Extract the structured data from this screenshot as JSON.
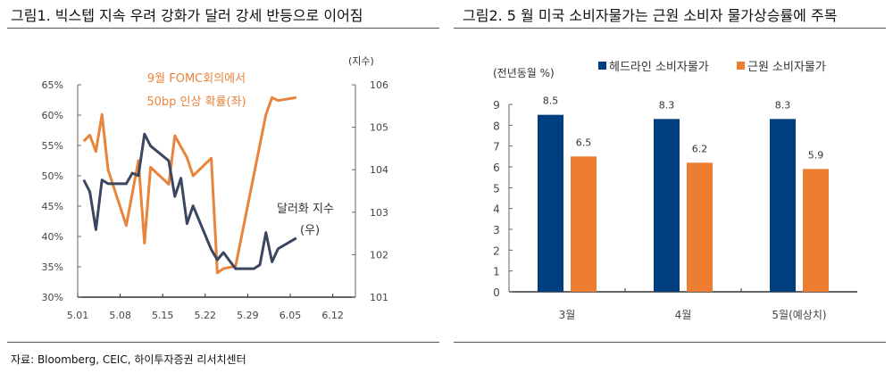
{
  "figure1": {
    "title": "그림1.  빅스텝 지속 우려 강화가 달러 강세 반등으로 이어짐"
  },
  "figure2": {
    "title": "그림2.  5 월 미국 소비자물가는 근원 소비자 물가상승률에 주목"
  },
  "source": "자료: Bloomberg, CEIC, 하이투자증권 리서치센터",
  "chart_data": [
    {
      "type": "line",
      "x_ticks": [
        "5.01",
        "5.08",
        "5.15",
        "5.22",
        "5.29",
        "6.05",
        "6.12"
      ],
      "y_left": {
        "ticks": [
          "30%",
          "35%",
          "40%",
          "45%",
          "50%",
          "55%",
          "60%",
          "65%"
        ],
        "range": [
          30,
          65
        ]
      },
      "y_right": {
        "label": "(지수)",
        "ticks": [
          "101",
          "102",
          "103",
          "104",
          "105",
          "106"
        ],
        "range": [
          101,
          106
        ]
      },
      "grid": false,
      "series": [
        {
          "name": "9월 FOMC회의에서 50bp 인상 확률(좌)",
          "label_lines": [
            "9월 FOMC회의에서",
            "50bp 인상 확률(좌)"
          ],
          "axis": "left",
          "color": "#e8843b",
          "x": [
            "5.02",
            "5.03",
            "5.04",
            "5.05",
            "5.06",
            "5.09",
            "5.11",
            "5.12",
            "5.13",
            "5.16",
            "5.17",
            "5.19",
            "5.20",
            "5.23",
            "5.24",
            "5.25",
            "5.27",
            "6.01",
            "6.02",
            "6.03",
            "6.06"
          ],
          "y": [
            55.7,
            56.7,
            54,
            60.1,
            51,
            41.8,
            52.5,
            38.9,
            51.4,
            48.6,
            56.6,
            53,
            50,
            52.9,
            34,
            34.7,
            35.1,
            60.1,
            62.9,
            62.4,
            62.9
          ]
        },
        {
          "name": "달러화 지수 (우)",
          "label_lines": [
            "달러화 지수",
            "(우)"
          ],
          "axis": "right",
          "color": "#3b4760",
          "x": [
            "5.02",
            "5.03",
            "5.04",
            "5.05",
            "5.06",
            "5.09",
            "5.10",
            "5.11",
            "5.12",
            "5.13",
            "5.16",
            "5.17",
            "5.18",
            "5.19",
            "5.20",
            "5.23",
            "5.24",
            "5.25",
            "5.27",
            "5.30",
            "5.31",
            "6.01",
            "6.02",
            "6.03",
            "6.06"
          ],
          "y": [
            103.76,
            103.48,
            102.59,
            103.76,
            103.67,
            103.67,
            103.92,
            103.86,
            104.84,
            104.56,
            104.21,
            103.37,
            103.8,
            102.73,
            103.15,
            102.12,
            101.88,
            102.05,
            101.67,
            101.67,
            101.76,
            102.52,
            101.83,
            102.14,
            102.39
          ]
        }
      ]
    },
    {
      "type": "bar",
      "ylabel": "(전년동월 %)",
      "categories": [
        "3월",
        "4월",
        "5월(예상치)"
      ],
      "ylim": [
        0,
        9
      ],
      "y_ticks": [
        "0",
        "1",
        "2",
        "3",
        "4",
        "5",
        "6",
        "7",
        "8",
        "9"
      ],
      "legend": "top",
      "grid": false,
      "series": [
        {
          "name": "헤드라인 소비자물가",
          "color": "#003f7f",
          "values": [
            8.5,
            8.3,
            8.3
          ],
          "labels": [
            "8.5",
            "8.3",
            "8.3"
          ]
        },
        {
          "name": "근원 소비자물가",
          "color": "#ed7d31",
          "values": [
            6.5,
            6.2,
            5.9
          ],
          "labels": [
            "6.5",
            "6.2",
            "5.9"
          ]
        }
      ]
    }
  ]
}
